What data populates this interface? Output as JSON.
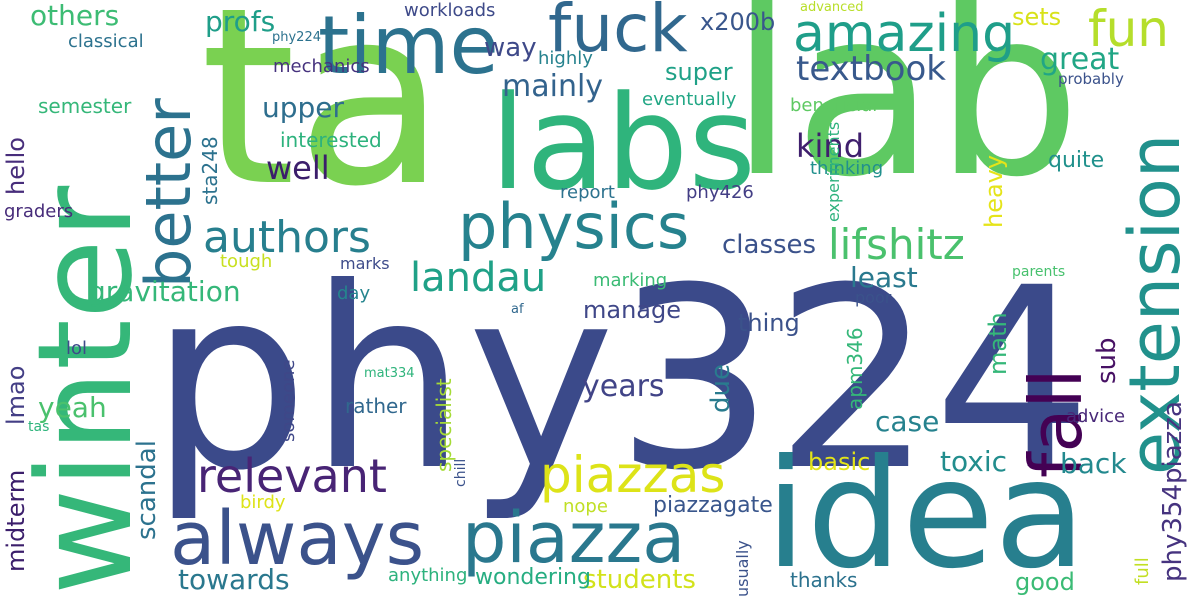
{
  "colors": {
    "background": "#ffffff",
    "palette": [
      "#3b4a8a",
      "#277f8e",
      "#1fa187",
      "#4ac16d",
      "#a0da39",
      "#e0e33a",
      "#46327e",
      "#2c728e"
    ]
  },
  "words": [
    {
      "text": "phy324",
      "color": "#3b4a8a"
    },
    {
      "text": "lab",
      "color": "#5ec962"
    },
    {
      "text": "ta",
      "color": "#7ad151"
    },
    {
      "text": "labs",
      "color": "#2fb47c"
    },
    {
      "text": "idea",
      "color": "#277f8e"
    },
    {
      "text": "winter",
      "color": "#35b779"
    },
    {
      "text": "time",
      "color": "#2c728e"
    },
    {
      "text": "fuck",
      "color": "#31688e"
    },
    {
      "text": "piazza",
      "color": "#2a788e"
    },
    {
      "text": "always",
      "color": "#3b528b"
    },
    {
      "text": "extension",
      "color": "#21918c"
    },
    {
      "text": "physics",
      "color": "#26828e"
    },
    {
      "text": "fall",
      "color": "#440154"
    },
    {
      "text": "better",
      "color": "#2c728e"
    },
    {
      "text": "amazing",
      "color": "#1f9e89"
    },
    {
      "text": "fun",
      "color": "#b5de2b"
    },
    {
      "text": "relevant",
      "color": "#482475"
    },
    {
      "text": "piazzas",
      "color": "#dde318"
    },
    {
      "text": "authors",
      "color": "#277f8e"
    },
    {
      "text": "lifshitz",
      "color": "#4ac16d"
    },
    {
      "text": "landau",
      "color": "#1fa187"
    },
    {
      "text": "textbook",
      "color": "#38598c"
    },
    {
      "text": "gravitation",
      "color": "#35b779"
    },
    {
      "text": "years",
      "color": "#414487"
    },
    {
      "text": "others",
      "color": "#3dbc74"
    },
    {
      "text": "profs",
      "color": "#1f9e89"
    },
    {
      "text": "way",
      "color": "#3e4989"
    },
    {
      "text": "x200b",
      "color": "#39568c"
    },
    {
      "text": "sets",
      "color": "#d8e219"
    },
    {
      "text": "great",
      "color": "#21a685"
    },
    {
      "text": "mainly",
      "color": "#33638d"
    },
    {
      "text": "super",
      "color": "#1fa187"
    },
    {
      "text": "upper",
      "color": "#2e6e8e"
    },
    {
      "text": "kind",
      "color": "#3f1f6d"
    },
    {
      "text": "well",
      "color": "#3b1e6b"
    },
    {
      "text": "classes",
      "color": "#3b528b"
    },
    {
      "text": "least",
      "color": "#29798e"
    },
    {
      "text": "case",
      "color": "#26828e"
    },
    {
      "text": "toxic",
      "color": "#228d8d"
    },
    {
      "text": "back",
      "color": "#23898e"
    },
    {
      "text": "basic",
      "color": "#e3e418"
    },
    {
      "text": "students",
      "color": "#d2e21b"
    },
    {
      "text": "towards",
      "color": "#2a788e"
    },
    {
      "text": "yeah",
      "color": "#4ac16d"
    },
    {
      "text": "manage",
      "color": "#3f4788"
    },
    {
      "text": "thing",
      "color": "#3b528b"
    },
    {
      "text": "semester",
      "color": "#35b779"
    },
    {
      "text": "graders",
      "color": "#472c7a"
    },
    {
      "text": "workloads",
      "color": "#3e4a89"
    },
    {
      "text": "highly",
      "color": "#26828e"
    },
    {
      "text": "eventually",
      "color": "#22a785"
    },
    {
      "text": "beneficial",
      "color": "#5ec962"
    },
    {
      "text": "interested",
      "color": "#2db27d"
    },
    {
      "text": "mechanics",
      "color": "#46327e"
    },
    {
      "text": "classical",
      "color": "#2c728e"
    },
    {
      "text": "phy224",
      "color": "#2c728e"
    },
    {
      "text": "advanced",
      "color": "#b8de29"
    },
    {
      "text": "probably",
      "color": "#3b528b"
    },
    {
      "text": "quite",
      "color": "#21918c"
    },
    {
      "text": "thinking",
      "color": "#21908d"
    },
    {
      "text": "phy426",
      "color": "#433e85"
    },
    {
      "text": "report",
      "color": "#2c728e"
    },
    {
      "text": "marking",
      "color": "#3bbb75"
    },
    {
      "text": "tough",
      "color": "#c8e020"
    },
    {
      "text": "marks",
      "color": "#3e4c8a"
    },
    {
      "text": "day",
      "color": "#25858e"
    },
    {
      "text": "parents",
      "color": "#48c16e"
    },
    {
      "text": "poor",
      "color": "#3b528b"
    },
    {
      "text": "af",
      "color": "#31688e"
    },
    {
      "text": "lol",
      "color": "#3e4a89"
    },
    {
      "text": "mat334",
      "color": "#2fb47c"
    },
    {
      "text": "rather",
      "color": "#31688e"
    },
    {
      "text": "advice",
      "color": "#482878"
    },
    {
      "text": "tas",
      "color": "#2fb47c"
    },
    {
      "text": "birdy",
      "color": "#dde318"
    },
    {
      "text": "nope",
      "color": "#c0df25"
    },
    {
      "text": "piazzagate",
      "color": "#39568c"
    },
    {
      "text": "anything",
      "color": "#2db27d"
    },
    {
      "text": "wondering",
      "color": "#26ad81"
    },
    {
      "text": "thanks",
      "color": "#2c728e"
    },
    {
      "text": "good",
      "color": "#3bbb75"
    },
    {
      "text": "hello",
      "color": "#472d7b"
    },
    {
      "text": "midterm",
      "color": "#3b1e6b"
    },
    {
      "text": "lmao",
      "color": "#433e85"
    },
    {
      "text": "scandal",
      "color": "#2c728e"
    },
    {
      "text": "heavy",
      "color": "#e5e419"
    },
    {
      "text": "sub",
      "color": "#471164"
    },
    {
      "text": "phy354piazza",
      "color": "#46337f"
    },
    {
      "text": "due",
      "color": "#297b8e"
    },
    {
      "text": "math",
      "color": "#35b779"
    },
    {
      "text": "sta248",
      "color": "#2c728e"
    },
    {
      "text": "specialist",
      "color": "#a5db36"
    },
    {
      "text": "someone",
      "color": "#3f4788"
    },
    {
      "text": "full",
      "color": "#c2df23"
    },
    {
      "text": "apm346",
      "color": "#35b779"
    },
    {
      "text": "usually",
      "color": "#3b528b"
    },
    {
      "text": "experiments",
      "color": "#2db27d"
    },
    {
      "text": "chill",
      "color": "#3b528b"
    }
  ]
}
